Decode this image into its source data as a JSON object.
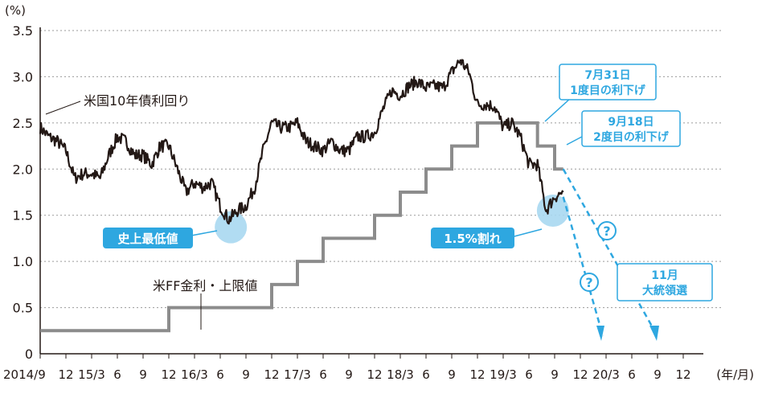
{
  "chart_data": {
    "type": "line",
    "y_unit": "(%)",
    "x_unit": "(年/月)",
    "grid": "horizontal dashed",
    "ylim": [
      0,
      3.5
    ],
    "y_ticks": [
      "0",
      "0.5",
      "1.0",
      "1.5",
      "2.0",
      "2.5",
      "3.0",
      "3.5"
    ],
    "x_ticks": [
      "2014/9",
      "12",
      "15/3",
      "6",
      "9",
      "12",
      "16/3",
      "6",
      "9",
      "12",
      "17/3",
      "6",
      "9",
      "12",
      "18/3",
      "6",
      "9",
      "12",
      "19/3",
      "6",
      "9",
      "12",
      "20/3",
      "6",
      "9",
      "12"
    ],
    "series": [
      {
        "name": "米国10年債利回り",
        "color": "#231815",
        "points": [
          [
            "2014-09",
            2.45
          ],
          [
            "2014-10",
            2.35
          ],
          [
            "2014-11",
            2.3
          ],
          [
            "2014-12",
            2.2
          ],
          [
            "2015-01",
            1.9
          ],
          [
            "2015-02",
            1.95
          ],
          [
            "2015-03",
            1.95
          ],
          [
            "2015-04",
            1.9
          ],
          [
            "2015-05",
            2.15
          ],
          [
            "2015-06",
            2.35
          ],
          [
            "2015-07",
            2.3
          ],
          [
            "2015-08",
            2.15
          ],
          [
            "2015-09",
            2.15
          ],
          [
            "2015-10",
            2.05
          ],
          [
            "2015-11",
            2.25
          ],
          [
            "2015-12",
            2.25
          ],
          [
            "2016-01",
            2.0
          ],
          [
            "2016-02",
            1.75
          ],
          [
            "2016-03",
            1.85
          ],
          [
            "2016-04",
            1.8
          ],
          [
            "2016-05",
            1.85
          ],
          [
            "2016-06",
            1.6
          ],
          [
            "2016-07",
            1.45
          ],
          [
            "2016-08",
            1.55
          ],
          [
            "2016-09",
            1.6
          ],
          [
            "2016-10",
            1.8
          ],
          [
            "2016-11",
            2.2
          ],
          [
            "2016-12",
            2.5
          ],
          [
            "2017-01",
            2.45
          ],
          [
            "2017-02",
            2.45
          ],
          [
            "2017-03",
            2.5
          ],
          [
            "2017-04",
            2.3
          ],
          [
            "2017-05",
            2.25
          ],
          [
            "2017-06",
            2.2
          ],
          [
            "2017-07",
            2.3
          ],
          [
            "2017-08",
            2.2
          ],
          [
            "2017-09",
            2.2
          ],
          [
            "2017-10",
            2.35
          ],
          [
            "2017-11",
            2.35
          ],
          [
            "2017-12",
            2.4
          ],
          [
            "2018-01",
            2.65
          ],
          [
            "2018-02",
            2.85
          ],
          [
            "2018-03",
            2.8
          ],
          [
            "2018-04",
            2.9
          ],
          [
            "2018-05",
            2.95
          ],
          [
            "2018-06",
            2.88
          ],
          [
            "2018-07",
            2.9
          ],
          [
            "2018-08",
            2.88
          ],
          [
            "2018-09",
            3.05
          ],
          [
            "2018-10",
            3.18
          ],
          [
            "2018-11",
            3.05
          ],
          [
            "2018-12",
            2.7
          ],
          [
            "2019-01",
            2.7
          ],
          [
            "2019-02",
            2.68
          ],
          [
            "2019-03",
            2.45
          ],
          [
            "2019-04",
            2.5
          ],
          [
            "2019-05",
            2.35
          ],
          [
            "2019-06",
            2.05
          ],
          [
            "2019-07",
            2.05
          ],
          [
            "2019-08",
            1.55
          ],
          [
            "2019-09",
            1.7
          ],
          [
            "2019-10",
            1.75
          ]
        ]
      },
      {
        "name": "米FF金利・上限値",
        "color": "#8c8c8c",
        "points": [
          [
            "2014-09",
            0.25
          ],
          [
            "2015-12",
            0.25
          ],
          [
            "2015-12",
            0.5
          ],
          [
            "2016-12",
            0.5
          ],
          [
            "2016-12",
            0.75
          ],
          [
            "2017-03",
            0.75
          ],
          [
            "2017-03",
            1.0
          ],
          [
            "2017-06",
            1.0
          ],
          [
            "2017-06",
            1.25
          ],
          [
            "2017-12",
            1.25
          ],
          [
            "2017-12",
            1.5
          ],
          [
            "2018-03",
            1.5
          ],
          [
            "2018-03",
            1.75
          ],
          [
            "2018-06",
            1.75
          ],
          [
            "2018-06",
            2.0
          ],
          [
            "2018-09",
            2.0
          ],
          [
            "2018-09",
            2.25
          ],
          [
            "2018-12",
            2.25
          ],
          [
            "2018-12",
            2.5
          ],
          [
            "2019-07",
            2.5
          ],
          [
            "2019-07",
            2.25
          ],
          [
            "2019-09",
            2.25
          ],
          [
            "2019-09",
            2.0
          ],
          [
            "2019-10",
            2.0
          ]
        ]
      }
    ],
    "annotations": {
      "record_low": "史上最低値",
      "below_15": "1.5%割れ",
      "cut1_date": "7月31日",
      "cut1_label": "1度目の利下げ",
      "cut2_date": "9月18日",
      "cut2_label": "2度目の利下げ",
      "question": "?",
      "election_month": "11月",
      "election_label": "大統領選"
    },
    "colors": {
      "accent": "#2ea7e0",
      "circle": "#a9d8f1",
      "grid": "#9a9a9a"
    }
  }
}
